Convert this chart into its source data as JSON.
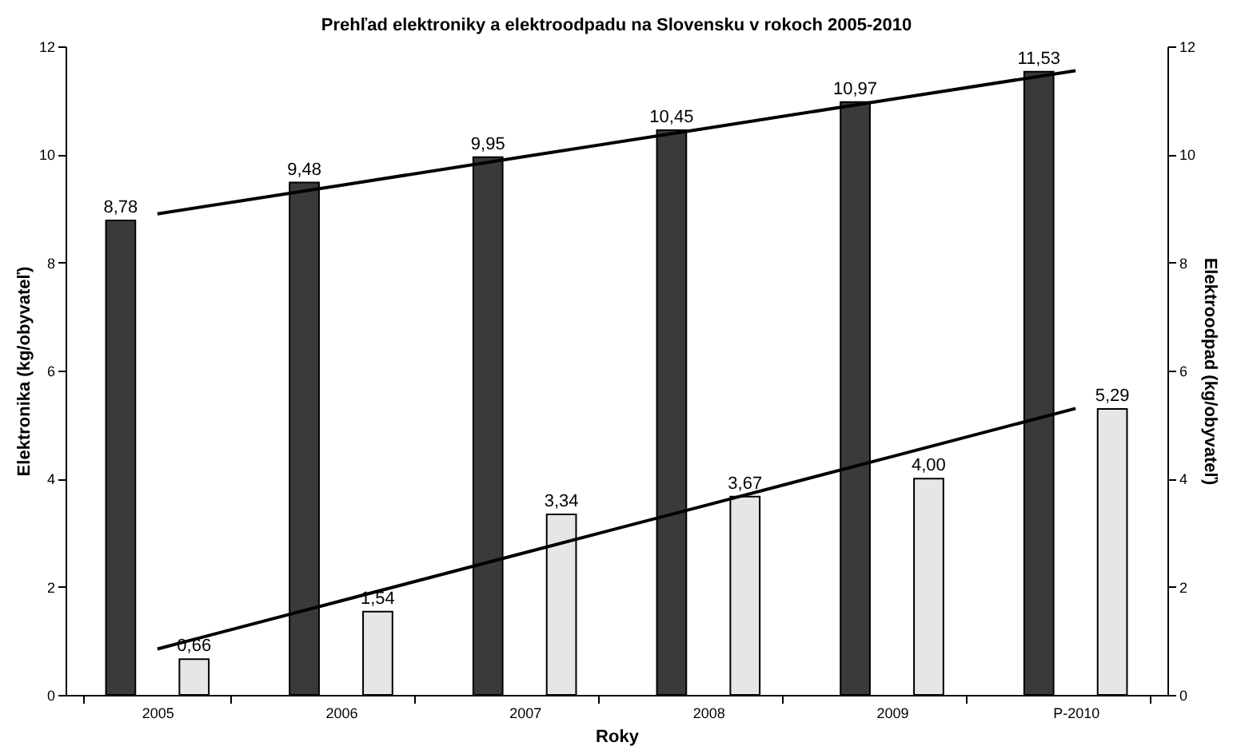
{
  "chart_data": {
    "type": "bar",
    "title": "Prehľad elektroniky a elektroodpadu na Slovensku v rokoch 2005-2010",
    "xlabel": "Roky",
    "ylabel": "Elektronika (kg/obyvateľ)",
    "y2label": "Elektroodpad (kg/obyvateľ)",
    "categories": [
      "2005",
      "2006",
      "2007",
      "2008",
      "2009",
      "P-2010"
    ],
    "series": [
      {
        "color": "#3a3a3a",
        "values": [
          8.78,
          9.48,
          9.95,
          10.45,
          10.97,
          11.53
        ],
        "value_labels": [
          "8,78",
          "9,48",
          "9,95",
          "10,45",
          "10,97",
          "11,53"
        ]
      },
      {
        "axis": "y2",
        "color": "#e6e6e6",
        "values": [
          0.66,
          1.54,
          3.34,
          3.67,
          4.0,
          5.29
        ],
        "value_labels": [
          "0,66",
          "1,54",
          "3,34",
          "3,67",
          "4,00",
          "5,29"
        ]
      },
      {
        "type": "line",
        "color": "#000000",
        "values": [
          8.9,
          9.43,
          9.96,
          10.49,
          11.02,
          11.55
        ]
      },
      {
        "type": "line",
        "axis": "y2",
        "color": "#000000",
        "values": [
          0.85,
          1.74,
          2.63,
          3.52,
          4.41,
          5.3
        ]
      }
    ],
    "ylim": [
      0,
      12
    ],
    "yticks": [
      0,
      2,
      4,
      6,
      8,
      10,
      12
    ],
    "y2lim": [
      0,
      12
    ],
    "y2ticks": [
      0,
      2,
      4,
      6,
      8,
      10,
      12
    ],
    "grid": false
  }
}
